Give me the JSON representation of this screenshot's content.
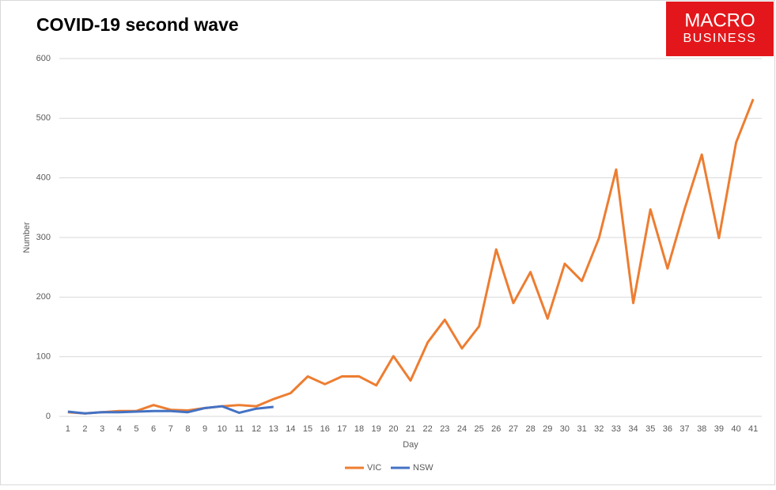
{
  "chart_data": {
    "type": "line",
    "title": "COVID-19 second wave",
    "logo": [
      "MACRO",
      "BUSINESS"
    ],
    "x_label": "Day",
    "y_label": "Number",
    "categories": [
      1,
      2,
      3,
      4,
      5,
      6,
      7,
      8,
      9,
      10,
      11,
      12,
      13,
      14,
      15,
      16,
      17,
      18,
      19,
      20,
      21,
      22,
      23,
      24,
      25,
      26,
      27,
      28,
      29,
      30,
      31,
      32,
      33,
      34,
      35,
      36,
      37,
      38,
      39,
      40,
      41
    ],
    "series": [
      {
        "name": "VIC",
        "color": "#ed7d31",
        "values": [
          7,
          5,
          7,
          9,
          9,
          19,
          11,
          10,
          14,
          17,
          19,
          17,
          29,
          39,
          67,
          54,
          67,
          67,
          52,
          101,
          60,
          124,
          162,
          114,
          151,
          280,
          190,
          242,
          164,
          256,
          227,
          299,
          414,
          190,
          347,
          248,
          348,
          439,
          299,
          459,
          532
        ]
      },
      {
        "name": "NSW",
        "color": "#4472c4",
        "values": [
          8,
          5,
          7,
          7,
          8,
          9,
          9,
          7,
          14,
          17,
          6,
          13,
          16,
          null,
          null,
          null,
          null,
          null,
          null,
          null,
          null,
          null,
          null,
          null,
          null,
          null,
          null,
          null,
          null,
          null,
          null,
          null,
          null,
          null,
          null,
          null,
          null,
          null,
          null,
          null,
          null
        ]
      }
    ],
    "ylim": [
      0,
      600
    ],
    "yticks": [
      0,
      100,
      200,
      300,
      400,
      500,
      600
    ],
    "grid": true,
    "legend": "bottom"
  }
}
